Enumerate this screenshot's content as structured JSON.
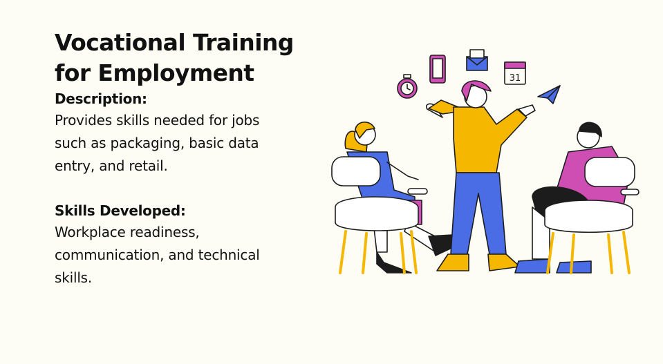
{
  "slide": {
    "title_line1": "Vocational Training",
    "title_line2": "for Employment",
    "description_heading": "Description:",
    "description_lines": [
      "Provides skills needed for jobs",
      "such as packaging, basic data",
      "entry, and retail."
    ],
    "skills_heading": "Skills Developed:",
    "skills_lines": [
      "Workplace readiness,",
      "communication, and technical",
      "skills."
    ]
  },
  "illustration": {
    "calendar_day": "31",
    "colors": {
      "yellow": "#f5b700",
      "blue": "#4a6de5",
      "magenta": "#cf4eb4",
      "pink_skin": "#ffffff",
      "outline": "#1c1c1c"
    }
  }
}
